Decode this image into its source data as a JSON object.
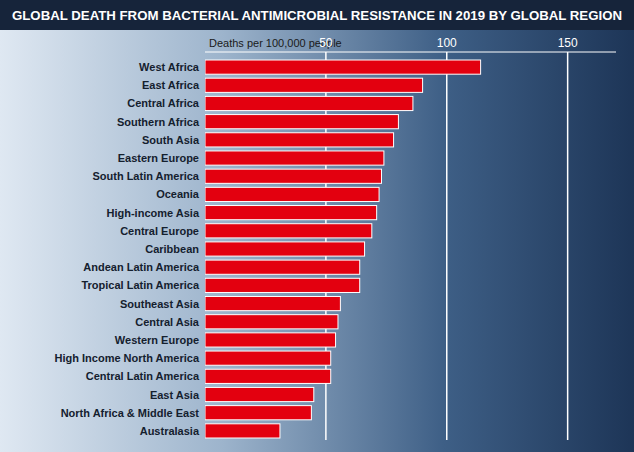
{
  "chart_data": {
    "type": "bar",
    "title": "GLOBAL DEATH FROM BACTERIAL ANTIMICROBIAL RESISTANCE IN 2019 BY GLOBAL REGION",
    "x_label": "Deaths per 100,000 people",
    "orientation": "horizontal",
    "categories": [
      "West Africa",
      "East Africa",
      "Central Africa",
      "Southern Africa",
      "South Asia",
      "Eastern Europe",
      "South Latin America",
      "Oceania",
      "High-income Asia",
      "Central Europe",
      "Caribbean",
      "Andean Latin America",
      "Tropical Latin America",
      "Southeast Asia",
      "Central Asia",
      "Western Europe",
      "High Income North America",
      "Central Latin America",
      "East Asia",
      "North Africa & Middle East",
      "Australasia"
    ],
    "values": [
      114,
      90,
      86,
      80,
      78,
      74,
      73,
      72,
      71,
      69,
      66,
      64,
      64,
      56,
      55,
      54,
      52,
      52,
      45,
      44,
      31
    ],
    "color": "#e3000f",
    "xlim": [
      0,
      170
    ],
    "xticks": [
      50,
      100,
      150
    ],
    "grid": true
  }
}
